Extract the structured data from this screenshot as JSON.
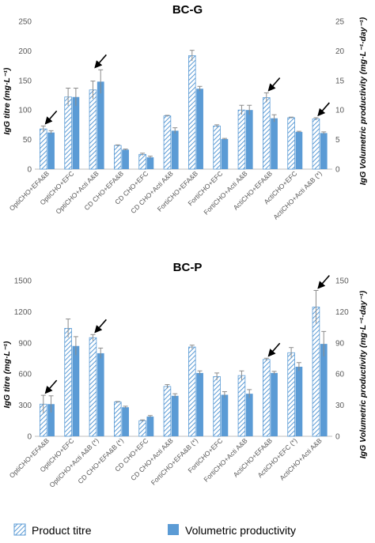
{
  "colors": {
    "productivity": "#5b9bd5",
    "titre_stroke": "#5b9bd5",
    "axis": "#bfbfbf",
    "text": "#595959"
  },
  "legend": {
    "items": [
      "Product titre",
      "Volumetric productivity"
    ],
    "placement": "bottom"
  },
  "chart_data": [
    {
      "type": "bar",
      "title": "BC-G",
      "ylabel": "IgG titre (mg·L⁻¹)",
      "y2label": "IgG Volumetric productivity (mg·L⁻¹·day⁻¹)",
      "ylim": [
        0,
        250
      ],
      "y2lim": [
        0,
        25
      ],
      "yticks": [
        0,
        50,
        100,
        150,
        200,
        250
      ],
      "y2ticks": [
        0,
        5,
        10,
        15,
        20,
        25
      ],
      "grid": false,
      "categories": [
        "OptiCHO+EFA&B",
        "OptiCHO+EFC",
        "OptiCHO+Acti A&B",
        "CD CHO+EFA&B",
        "CD CHO+EFC",
        "CD CHO+Acti A&B",
        "FortiCHO+EFA&B",
        "FortiCHO+EFC",
        "FortiCHO+Acti A&B",
        "ActiCHO+EFA&B",
        "ActiCHO+EFC",
        "ActiCHO+Acti A&B (*)"
      ],
      "series": [
        {
          "name": "Product titre",
          "axis": "left",
          "values": [
            68,
            122,
            134,
            40,
            25,
            90,
            192,
            73,
            100,
            121,
            87,
            85
          ],
          "errors": [
            5,
            15,
            15,
            1,
            2,
            1,
            9,
            2,
            8,
            8,
            1,
            2
          ]
        },
        {
          "name": "Volumetric productivity",
          "axis": "right",
          "values": [
            6.2,
            12.2,
            14.8,
            3.3,
            2.0,
            6.5,
            13.6,
            5.1,
            10.0,
            8.6,
            6.3,
            6.1
          ],
          "errors": [
            0.3,
            1.5,
            2.0,
            0.1,
            0.2,
            0.5,
            0.4,
            0.1,
            0.8,
            0.6,
            0.1,
            0.2
          ]
        }
      ],
      "annotations": {
        "arrows_at": [
          0,
          2,
          9,
          11
        ]
      }
    },
    {
      "type": "bar",
      "title": "BC-P",
      "ylabel": "IgG titre (mg·L⁻¹)",
      "y2label": "IgG Volumetric productivity (mg·L⁻¹·day⁻¹)",
      "ylim": [
        0,
        1500
      ],
      "y2lim": [
        0,
        150
      ],
      "yticks": [
        0,
        300,
        600,
        900,
        1200,
        1500
      ],
      "y2ticks": [
        0,
        30,
        60,
        90,
        120,
        150
      ],
      "grid": false,
      "categories": [
        "OptiCHO+EFA&B",
        "OptiCHO+EFC",
        "OptiCHO+Acti A&B (*)",
        "CD CHO+EFA&B (*)",
        "CD CHO+EFC",
        "CD CHO+Acti A&B",
        "FortiCHO+EFA&B (*)",
        "FortiCHO+EFC",
        "FortiCHO+Acti A&B",
        "ActiCHO+EFA&B",
        "ActiCHO+EFC (*)",
        "ActiCHO+Acti A&B"
      ],
      "series": [
        {
          "name": "Product titre",
          "axis": "left",
          "values": [
            310,
            1040,
            950,
            330,
            150,
            480,
            860,
            575,
            585,
            740,
            805,
            1245
          ],
          "errors": [
            85,
            90,
            30,
            5,
            8,
            18,
            18,
            35,
            45,
            12,
            50,
            160
          ]
        },
        {
          "name": "Volumetric productivity",
          "axis": "right",
          "values": [
            31,
            87,
            80,
            28,
            19,
            39,
            61,
            40,
            41,
            61,
            67,
            89
          ],
          "errors": [
            8,
            9,
            5,
            1,
            1,
            2,
            2,
            3,
            4,
            1.5,
            4,
            12
          ]
        }
      ],
      "annotations": {
        "arrows_at": [
          0,
          2,
          9,
          11
        ]
      }
    }
  ]
}
